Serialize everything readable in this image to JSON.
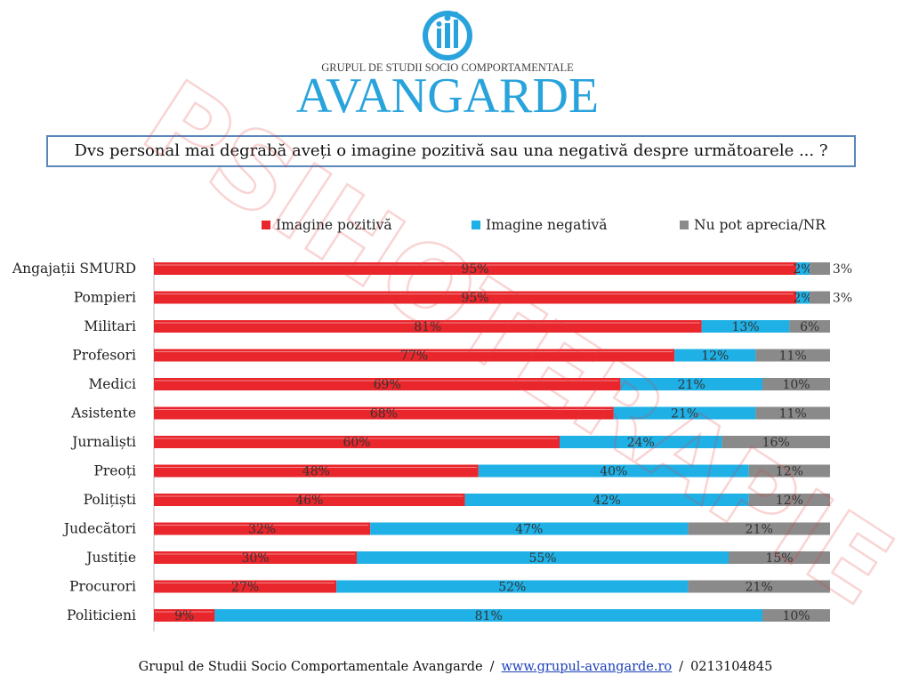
{
  "logo": {
    "subtitle": "GRUPUL DE STUDII SOCIO COMPORTAMENTALE",
    "name": "AVANGARDE",
    "brand_color": "#29a3dc",
    "icon": "people-circle-logo-icon"
  },
  "watermark": {
    "text": "PSIHOTERAPIE",
    "color": "#e33b3b"
  },
  "question": "Dvs personal mai degrabă aveți o imagine pozitivă sau una negativă despre următoarele ... ?",
  "chart_data": {
    "type": "bar",
    "orientation": "horizontal",
    "stacked": true,
    "xlim": [
      0,
      100
    ],
    "grid": false,
    "legend_position": "top",
    "categories": [
      "Angajații SMURD",
      "Pompieri",
      "Militari",
      "Profesori",
      "Medici",
      "Asistente",
      "Jurnaliști",
      "Preoți",
      "Polițiști",
      "Judecători",
      "Justiție",
      "Procurori",
      "Politicieni"
    ],
    "series": [
      {
        "name": "Imagine pozitivă",
        "color": "#e8262b",
        "values": [
          95,
          95,
          81,
          77,
          69,
          68,
          60,
          48,
          46,
          32,
          30,
          27,
          9
        ]
      },
      {
        "name": "Imagine negativă",
        "color": "#1fb0e6",
        "values": [
          2,
          2,
          13,
          12,
          21,
          21,
          24,
          40,
          42,
          47,
          55,
          52,
          81
        ]
      },
      {
        "name": "Nu pot aprecia/NR",
        "color": "#8a8a8a",
        "values": [
          3,
          3,
          6,
          11,
          10,
          11,
          16,
          12,
          12,
          21,
          15,
          21,
          10
        ]
      }
    ]
  },
  "footer": {
    "org": "Grupul de Studii Socio Comportamentale Avangarde",
    "separator": "/",
    "website": "www.grupul-avangarde.ro",
    "phone": "0213104845"
  }
}
